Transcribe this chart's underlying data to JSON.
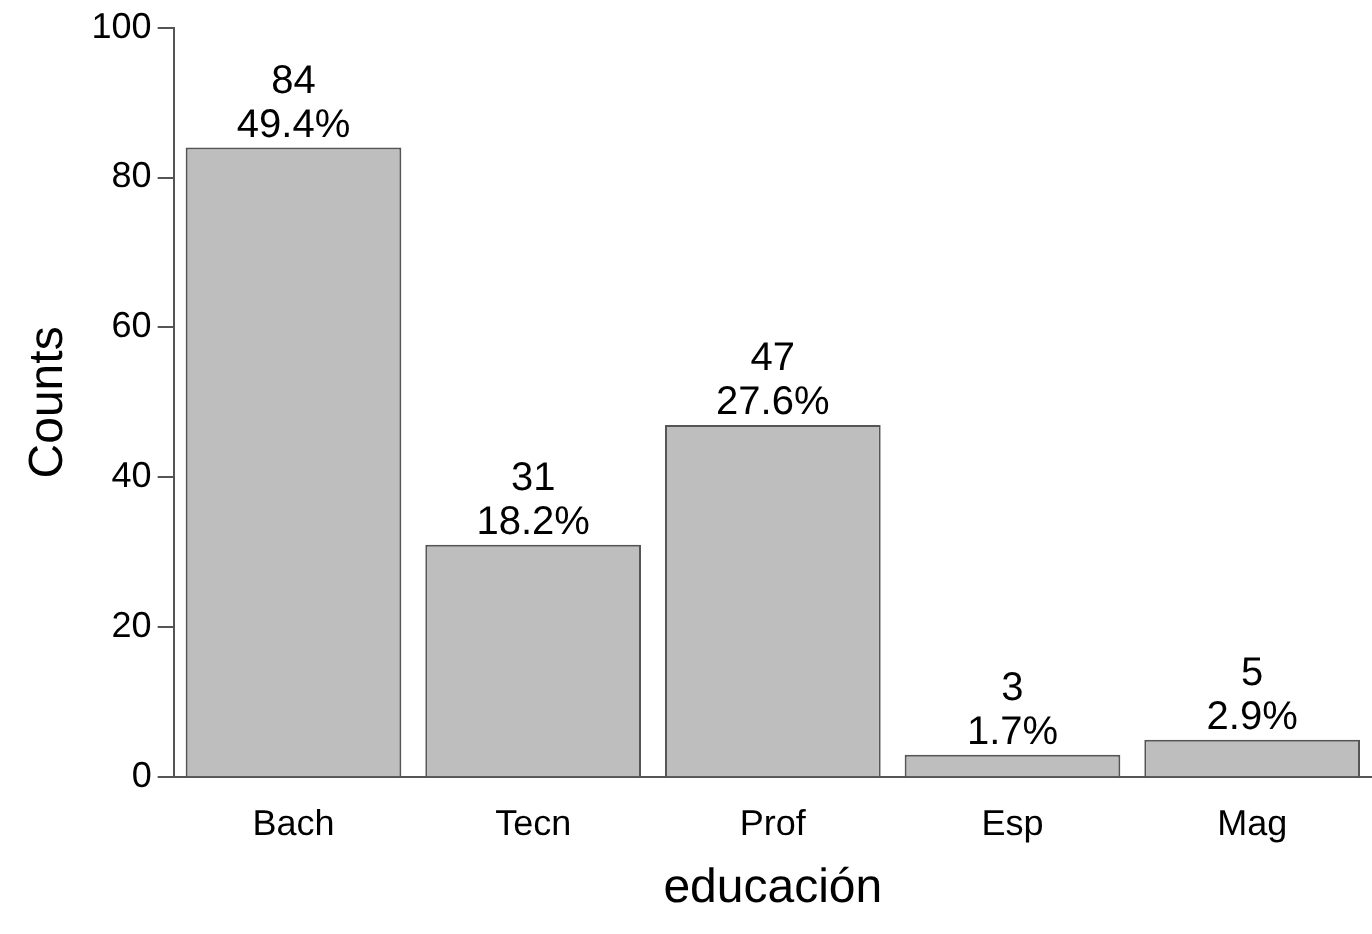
{
  "chart_data": {
    "type": "bar",
    "xlabel": "educación",
    "ylabel": "Counts",
    "categories": [
      "Bach",
      "Tecn",
      "Prof",
      "Esp",
      "Mag"
    ],
    "values": [
      84,
      31,
      47,
      3,
      5
    ],
    "color": "#bebebe",
    "value_labels": [
      "84\n49.4%",
      "31\n18.2%",
      "47\n27.6%",
      "3\n1.7%",
      "5\n2.9%"
    ],
    "ylim": [
      0,
      100
    ],
    "yticks": [
      0,
      20,
      40,
      60,
      80,
      100
    ],
    "grid": false,
    "legend": false
  }
}
